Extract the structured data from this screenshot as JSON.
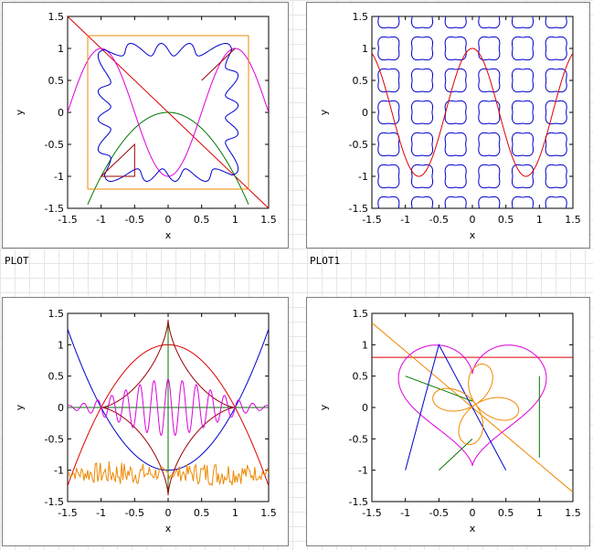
{
  "panels": {
    "p1": {
      "label": "PLOT"
    },
    "p2": {
      "label": "PLOT1"
    },
    "p3": {
      "label": ""
    },
    "p4": {
      "label": ""
    }
  },
  "colors": {
    "red": "#dd0000",
    "blue": "#0000cc",
    "magenta": "#dd00dd",
    "green": "#007700",
    "orange": "#ee8800",
    "darkorange": "#cc8800"
  },
  "chart_data": [
    {
      "type": "line",
      "id": "plot-top-left",
      "xlabel": "x",
      "ylabel": "y",
      "xlim": [
        -1.5,
        1.5
      ],
      "ylim": [
        -1.5,
        1.5
      ],
      "xticks": [
        "-1.5",
        "-1",
        "-0.5",
        "0",
        "0.5",
        "1",
        "1.5"
      ],
      "yticks": [
        "-1.5",
        "-1",
        "-0.5",
        "0",
        "0.5",
        "1",
        "1.5"
      ],
      "series": [
        {
          "color": "red",
          "kind": "line",
          "x": [
            -1.5,
            1.5
          ],
          "y": [
            1.5,
            -1.5
          ]
        },
        {
          "color": "green",
          "kind": "function",
          "expr": "-x^2",
          "domain": [
            -1.2,
            1.2
          ]
        },
        {
          "color": "magenta",
          "kind": "function",
          "expr": "-cos(pi*x)",
          "domain": [
            -1.5,
            1.5
          ]
        },
        {
          "color": "orange",
          "kind": "polyline",
          "x": [
            -1.2,
            1.2,
            1.2,
            -1.2,
            -1.2
          ],
          "y": [
            1.2,
            1.2,
            -1.2,
            -1.2,
            1.2
          ]
        },
        {
          "color": "blue",
          "kind": "wavy-square",
          "half": 1.0,
          "amp": 0.1
        },
        {
          "color": "darkred",
          "kind": "polyline",
          "x": [
            -1.0,
            -0.5,
            -0.5,
            -1.0
          ],
          "y": [
            -1.0,
            -0.5,
            -1.0,
            -1.0
          ]
        },
        {
          "color": "darkred",
          "kind": "polyline",
          "x": [
            0.5,
            1.0,
            1.0,
            0.5
          ],
          "y": [
            0.5,
            1.0,
            1.0,
            0.5
          ]
        }
      ]
    },
    {
      "type": "line",
      "id": "plot-top-right",
      "xlabel": "x",
      "ylabel": "y",
      "xlim": [
        -1.5,
        1.5
      ],
      "ylim": [
        -1.5,
        1.5
      ],
      "xticks": [
        "-1.5",
        "-1",
        "-0.5",
        "0",
        "0.5",
        "1",
        "1.5"
      ],
      "yticks": [
        "-1.5",
        "-1",
        "-0.5",
        "0",
        "0.5",
        "1",
        "1.5"
      ],
      "series": [
        {
          "color": "blue",
          "kind": "blob-grid",
          "centers_x": [
            -1.25,
            -0.75,
            -0.25,
            0.25,
            0.75,
            1.25
          ],
          "centers_y": [
            1.5,
            1.0,
            0.5,
            0.0,
            -0.5,
            -1.0,
            -1.5
          ],
          "radius": 0.17
        },
        {
          "color": "red",
          "kind": "function",
          "expr": "cos(1.25*pi*x)",
          "domain": [
            -1.5,
            1.5
          ]
        }
      ]
    },
    {
      "type": "line",
      "id": "plot-bottom-left",
      "xlabel": "x",
      "ylabel": "y",
      "xlim": [
        -1.5,
        1.5
      ],
      "ylim": [
        -1.5,
        1.5
      ],
      "xticks": [
        "-1.5",
        "-1",
        "-0.5",
        "0",
        "0.5",
        "1",
        "1.5"
      ],
      "yticks": [
        "-1.5",
        "-1",
        "-0.5",
        "0",
        "0.5",
        "1",
        "1.5"
      ],
      "series": [
        {
          "color": "blue",
          "kind": "function",
          "expr": "x^2-1",
          "domain": [
            -1.5,
            1.5
          ]
        },
        {
          "color": "red",
          "kind": "function",
          "expr": "1-x^2",
          "domain": [
            -1.5,
            1.5
          ]
        },
        {
          "color": "green",
          "kind": "line",
          "x": [
            0,
            0
          ],
          "y": [
            -1.4,
            1.4
          ]
        },
        {
          "color": "green",
          "kind": "line",
          "x": [
            -1.5,
            1.5
          ],
          "y": [
            0,
            0
          ]
        },
        {
          "color": "darkred",
          "kind": "astroid",
          "a": 1.4
        },
        {
          "color": "magenta",
          "kind": "wave-packet",
          "freq": 9.5,
          "amp": 0.45
        },
        {
          "color": "orange",
          "kind": "noise",
          "base": -1.05,
          "amp": 0.2
        }
      ]
    },
    {
      "type": "line",
      "id": "plot-bottom-right",
      "xlabel": "x",
      "ylabel": "y",
      "xlim": [
        -1.5,
        1.5
      ],
      "ylim": [
        -1.5,
        1.5
      ],
      "xticks": [
        "-1.5",
        "-1",
        "-0.5",
        "0",
        "0.5",
        "1",
        "1.5"
      ],
      "yticks": [
        "-1.5",
        "-1",
        "-0.5",
        "0",
        "0.5",
        "1",
        "1.5"
      ],
      "series": [
        {
          "color": "red",
          "kind": "line",
          "x": [
            -1.5,
            1.5
          ],
          "y": [
            0.8,
            0.8
          ]
        },
        {
          "color": "orange",
          "kind": "line",
          "x": [
            -1.5,
            1.5
          ],
          "y": [
            1.35,
            -1.35
          ]
        },
        {
          "color": "magenta",
          "kind": "heart"
        },
        {
          "color": "blue",
          "kind": "polyline",
          "x": [
            -1.0,
            -0.5,
            0.5
          ],
          "y": [
            -1.0,
            1.0,
            -1.0
          ]
        },
        {
          "color": "green",
          "kind": "polyline",
          "x": [
            -1.0,
            0.0
          ],
          "y": [
            0.5,
            0.1
          ]
        },
        {
          "color": "green",
          "kind": "polyline",
          "x": [
            -0.5,
            0.0
          ],
          "y": [
            -1.0,
            -0.5
          ]
        },
        {
          "color": "green",
          "kind": "line",
          "x": [
            1.0,
            1.0
          ],
          "y": [
            -0.8,
            0.5
          ]
        },
        {
          "color": "orange",
          "kind": "rose"
        }
      ]
    }
  ]
}
